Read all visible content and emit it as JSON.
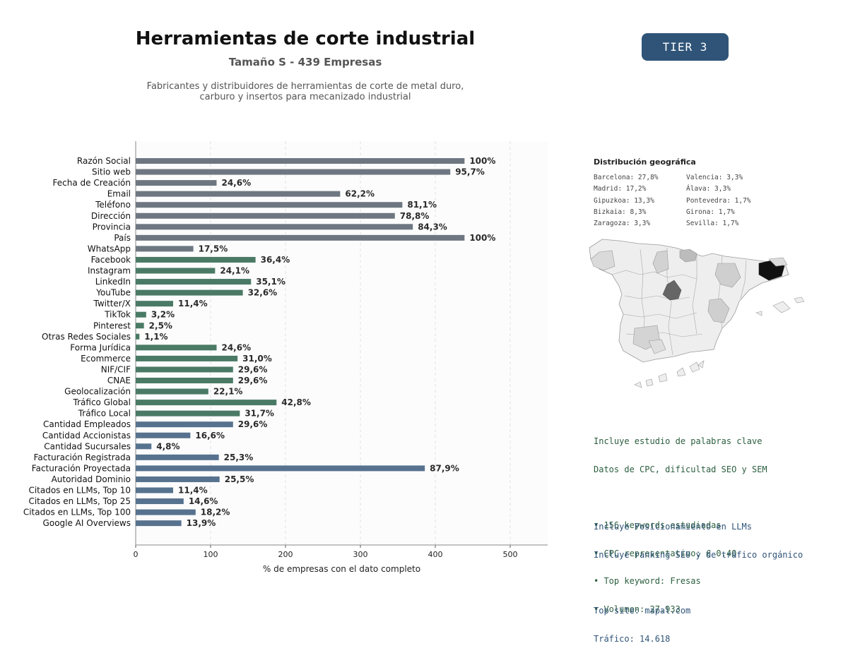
{
  "header": {
    "title": "Herramientas de corte industrial",
    "subtitle": "Tamaño S - 439 Empresas",
    "description_line1": "Fabricantes y distribuidores de herramientas de corte de metal duro,",
    "description_line2": "carburo y insertos para mecanizado industrial",
    "tier_label": "TIER 3"
  },
  "chart_data": {
    "type": "bar",
    "orientation": "horizontal",
    "xlabel": "% de empresas con el dato completo",
    "xlim": [
      0,
      550
    ],
    "xticks": [
      0,
      100,
      200,
      300,
      400,
      500
    ],
    "grid": "vertical dashed",
    "categories": [
      "Razón Social",
      "Sitio web",
      "Fecha de Creación",
      "Email",
      "Teléfono",
      "Dirección",
      "Provincia",
      "País",
      "WhatsApp",
      "Facebook",
      "Instagram",
      "LinkedIn",
      "YouTube",
      "Twitter/X",
      "TikTok",
      "Pinterest",
      "Otras Redes Sociales",
      "Forma Jurídica",
      "Ecommerce",
      "NIF/CIF",
      "CNAE",
      "Geolocalización",
      "Tráfico Global",
      "Tráfico Local",
      "Cantidad Empleados",
      "Cantidad Accionistas",
      "Cantidad Sucursales",
      "Facturación Registrada",
      "Facturación Proyectada",
      "Autoridad Dominio",
      "Citados en LLMs, Top 10",
      "Citados en LLMs, Top 25",
      "Citados en LLMs, Top 100",
      "Google AI Overviews"
    ],
    "values": [
      439,
      420,
      108,
      273,
      356,
      346,
      370,
      439,
      77,
      160,
      106,
      154,
      143,
      50,
      14,
      11,
      5,
      108,
      136,
      130,
      130,
      97,
      188,
      139,
      130,
      73,
      21,
      111,
      386,
      112,
      50,
      64,
      80,
      61
    ],
    "labels": [
      "100%",
      "95,7%",
      "24,6%",
      "62,2%",
      "81,1%",
      "78,8%",
      "84,3%",
      "100%",
      "17,5%",
      "36,4%",
      "24,1%",
      "35,1%",
      "32,6%",
      "11,4%",
      "3,2%",
      "2,5%",
      "1,1%",
      "24,6%",
      "31,0%",
      "29,6%",
      "29,6%",
      "22,1%",
      "42,8%",
      "31,7%",
      "29,6%",
      "16,6%",
      "4,8%",
      "25,3%",
      "87,9%",
      "25,5%",
      "11,4%",
      "14,6%",
      "18,2%",
      "13,9%"
    ],
    "groups": [
      {
        "from": 0,
        "to": 8,
        "color": "#6e7781"
      },
      {
        "from": 9,
        "to": 23,
        "color": "#4a7a65"
      },
      {
        "from": 24,
        "to": 33,
        "color": "#56728e"
      }
    ]
  },
  "geo": {
    "title": "Distribución geográfica",
    "col1": [
      "Barcelona: 27,8%",
      "Madrid: 17,2%",
      "Gipuzkoa: 13,3%",
      "Bizkaia: 8,3%",
      "Zaragoza: 3,3%"
    ],
    "col2": [
      "Valencia: 3,3%",
      "Álava: 3,3%",
      "Pontevedra: 1,7%",
      "Girona: 1,7%",
      "Sevilla: 1,7%"
    ]
  },
  "keywords": {
    "line1": "Incluye estudio de palabras clave",
    "line2": "Datos de CPC, dificultad SEO y SEM",
    "bullet1": "• 156 keywords estudiadas",
    "bullet2": "• CPC representativo: € 0.40",
    "bullet3": "• Top keyword: Fresas",
    "bullet4": "• Volumen: 27.933"
  },
  "llm": {
    "line1": "Incluye Posicionamiento en LLMs",
    "line2": "Incluye ranking SEO y de tráfico orgánico",
    "top_site": "Top site: mapal.com",
    "traffic": "Tráfico: 14.618"
  },
  "colors": {
    "tier_bg": "#2f5478",
    "keywords_text": "#2b5e3e",
    "llm_text": "#2f5478",
    "barcelona": "#111111",
    "madrid": "#666666"
  }
}
